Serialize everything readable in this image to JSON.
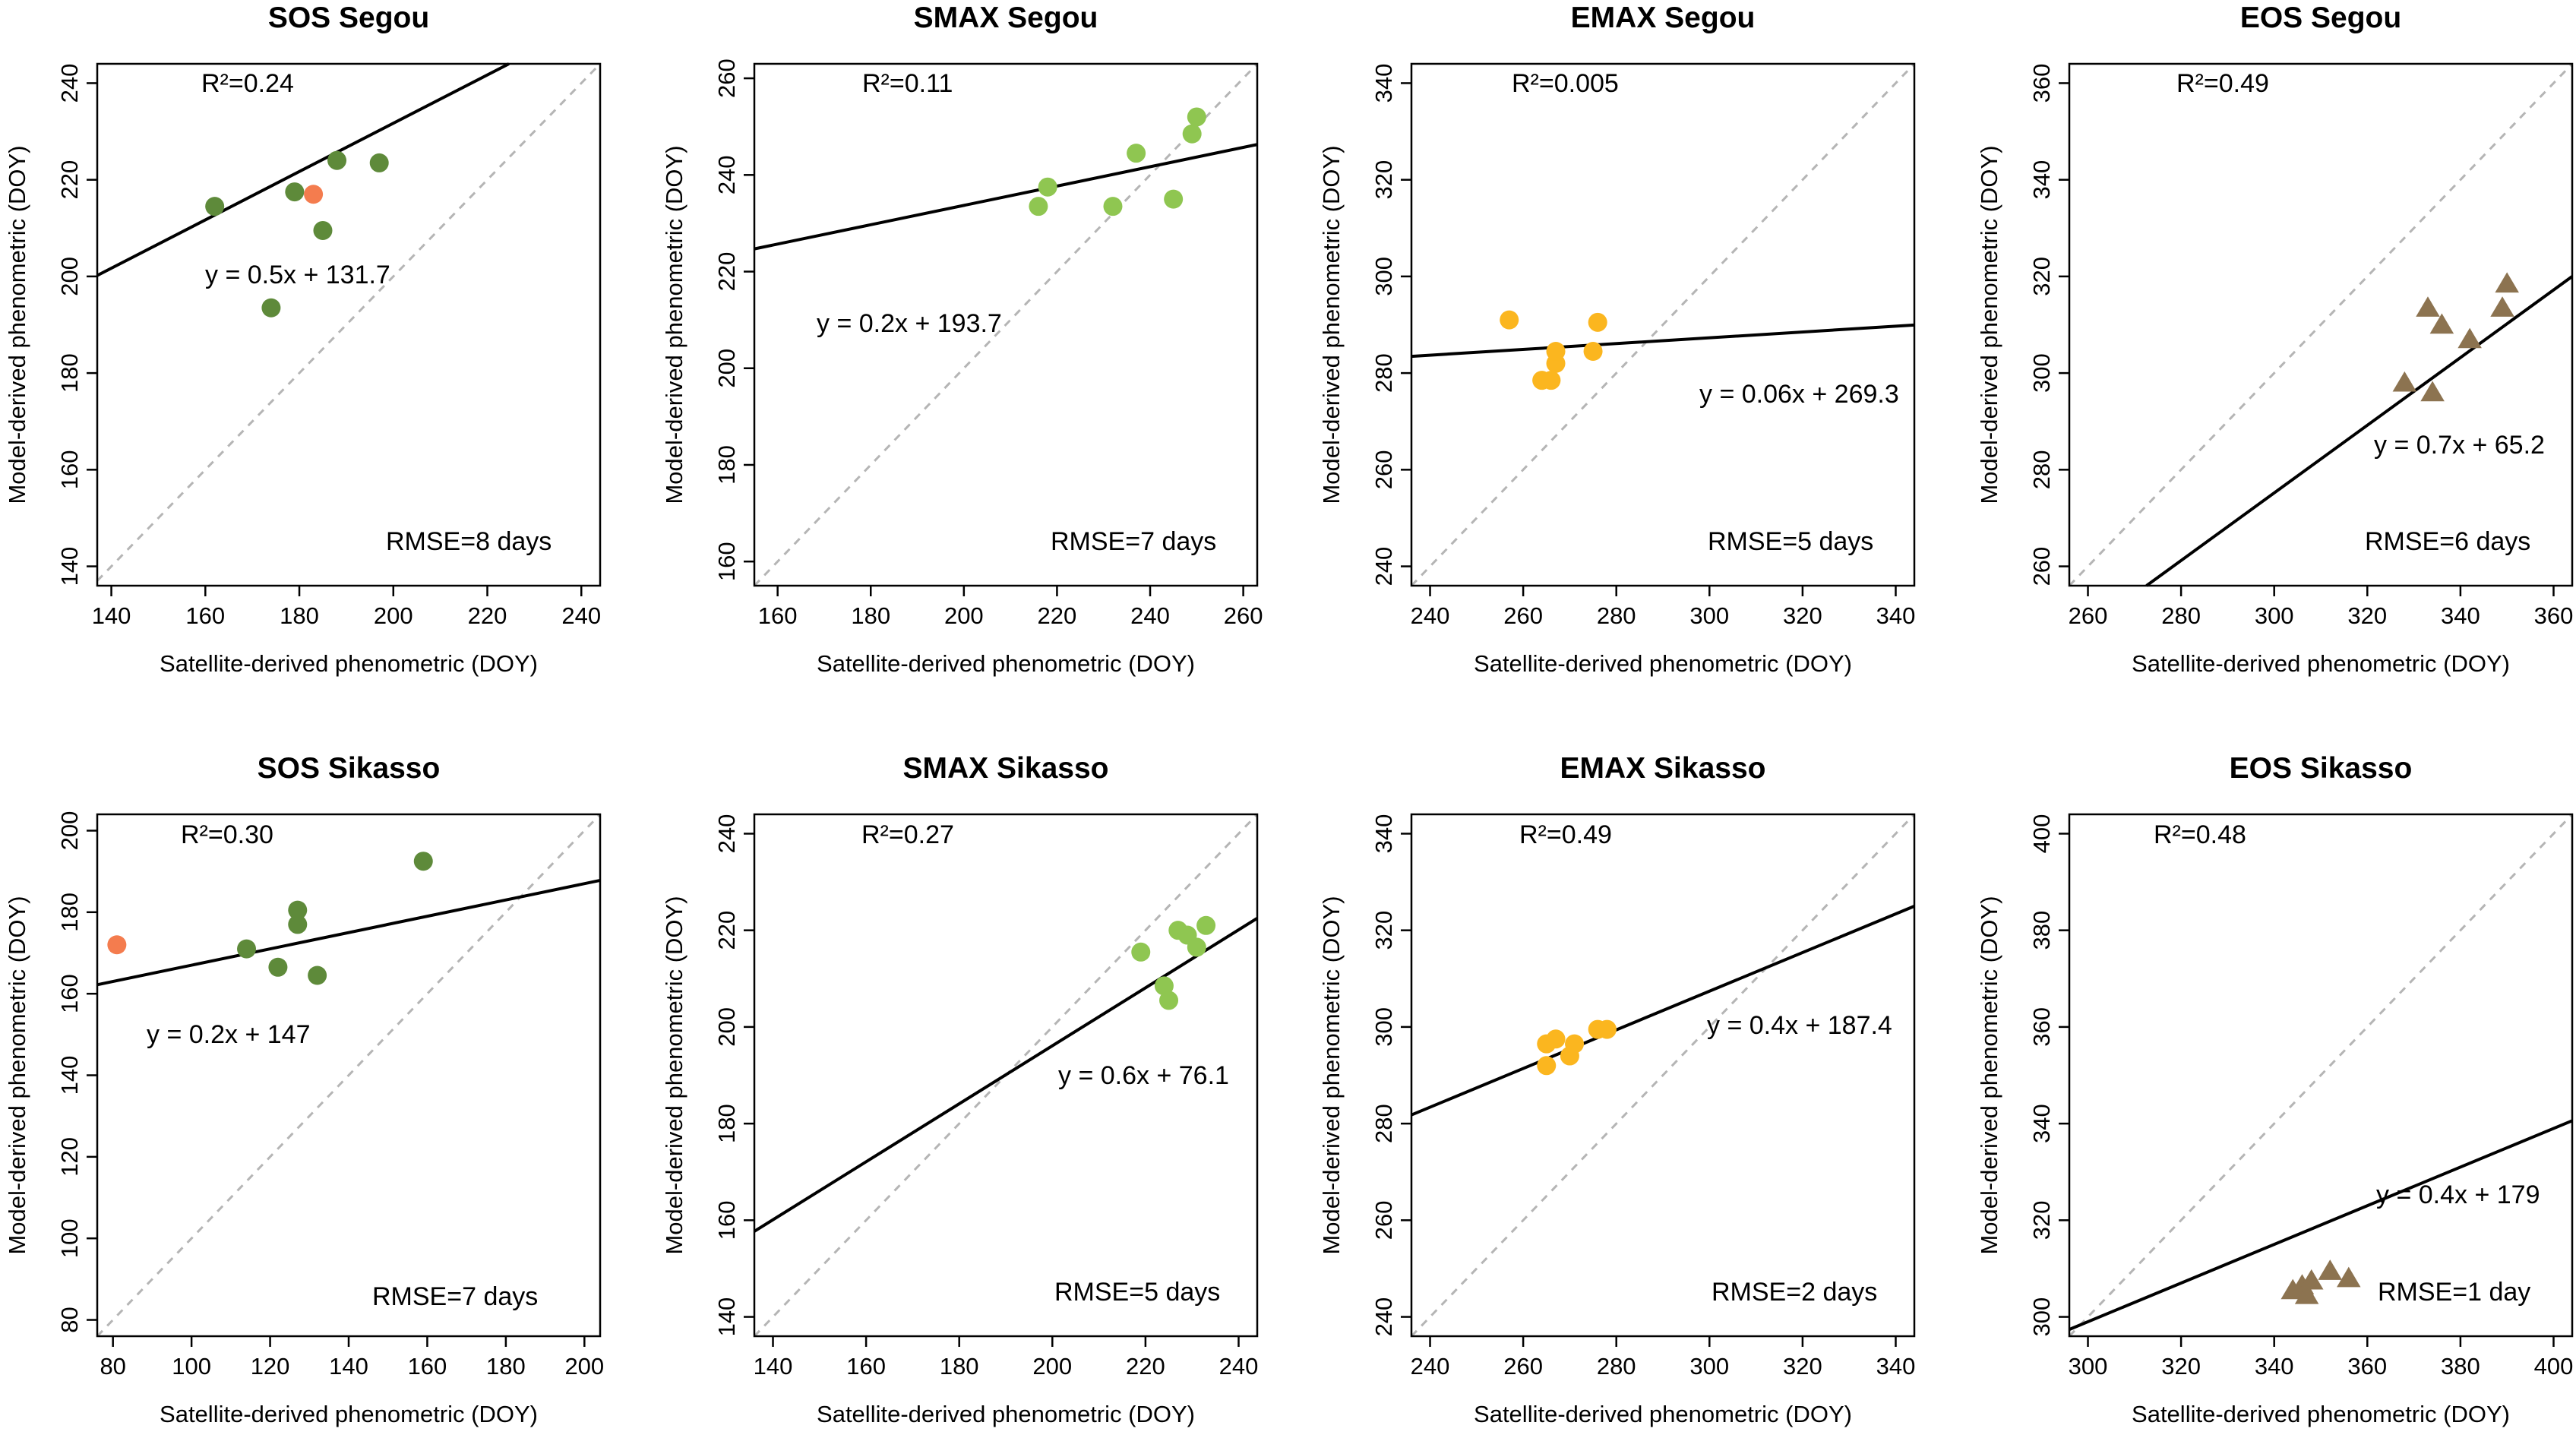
{
  "chart_data": [
    {
      "type": "scatter",
      "title": "SOS Segou",
      "xlabel": "Satellite-derived phenometric (DOY)",
      "ylabel": "Model-derived phenometric (DOY)",
      "xlim": [
        137,
        244
      ],
      "ylim": [
        136,
        244
      ],
      "xticks": [
        140,
        160,
        180,
        200,
        220,
        240
      ],
      "yticks": [
        140,
        160,
        180,
        200,
        220,
        240
      ],
      "marker": "circle",
      "color": "#5e8a3a",
      "points": [
        {
          "x": 162,
          "y": 214.5
        },
        {
          "x": 174,
          "y": 193.5
        },
        {
          "x": 179,
          "y": 217.5
        },
        {
          "x": 183,
          "y": 217,
          "color": "#f47c4e"
        },
        {
          "x": 185,
          "y": 209.5
        },
        {
          "x": 188,
          "y": 224
        },
        {
          "x": 197,
          "y": 223.5
        }
      ],
      "fit": {
        "slope": 0.5,
        "intercept": 131.7
      },
      "r2_label": "R²=0.24",
      "equation": "y = 0.5x + 131.7",
      "rmse_label": "RMSE=8 days"
    },
    {
      "type": "scatter",
      "title": "SMAX Segou",
      "xlabel": "Satellite-derived phenometric (DOY)",
      "ylabel": "Model-derived phenometric (DOY)",
      "xlim": [
        155,
        263
      ],
      "ylim": [
        155,
        263
      ],
      "xticks": [
        160,
        180,
        200,
        220,
        240,
        260
      ],
      "yticks": [
        160,
        180,
        200,
        220,
        240,
        260
      ],
      "marker": "circle",
      "color": "#8fc651",
      "points": [
        {
          "x": 216,
          "y": 233.5
        },
        {
          "x": 218,
          "y": 237.5
        },
        {
          "x": 232,
          "y": 233.5
        },
        {
          "x": 237,
          "y": 244.5
        },
        {
          "x": 245,
          "y": 235
        },
        {
          "x": 249,
          "y": 248.5
        },
        {
          "x": 250,
          "y": 252
        }
      ],
      "fit": {
        "slope": 0.2,
        "intercept": 193.7
      },
      "r2_label": "R²=0.11",
      "equation": "y = 0.2x + 193.7",
      "rmse_label": "RMSE=7 days"
    },
    {
      "type": "scatter",
      "title": "EMAX Segou",
      "xlabel": "Satellite-derived phenometric (DOY)",
      "ylabel": "Model-derived phenometric (DOY)",
      "xlim": [
        236,
        344
      ],
      "ylim": [
        236,
        344
      ],
      "xticks": [
        240,
        260,
        280,
        300,
        320,
        340
      ],
      "yticks": [
        240,
        260,
        280,
        300,
        320,
        340
      ],
      "marker": "circle",
      "color": "#fbb61f",
      "points": [
        {
          "x": 257,
          "y": 291
        },
        {
          "x": 264,
          "y": 278.5
        },
        {
          "x": 266,
          "y": 278.5
        },
        {
          "x": 267,
          "y": 282
        },
        {
          "x": 267,
          "y": 284.5
        },
        {
          "x": 275,
          "y": 284.5
        },
        {
          "x": 276,
          "y": 290.5
        }
      ],
      "fit": {
        "slope": 0.06,
        "intercept": 269.3
      },
      "r2_label": "R²=0.005",
      "equation": "y = 0.06x + 269.3",
      "rmse_label": "RMSE=5 days"
    },
    {
      "type": "scatter",
      "title": "EOS Segou",
      "xlabel": "Satellite-derived phenometric (DOY)",
      "ylabel": "Model-derived phenometric (DOY)",
      "xlim": [
        256,
        364
      ],
      "ylim": [
        256,
        364
      ],
      "xticks": [
        260,
        280,
        300,
        320,
        340,
        360
      ],
      "yticks": [
        260,
        280,
        300,
        320,
        340,
        360
      ],
      "marker": "triangle",
      "color": "#8c7350",
      "points": [
        {
          "x": 328,
          "y": 298
        },
        {
          "x": 333,
          "y": 313.5
        },
        {
          "x": 334,
          "y": 296
        },
        {
          "x": 336,
          "y": 310
        },
        {
          "x": 342,
          "y": 307
        },
        {
          "x": 349,
          "y": 313.5
        },
        {
          "x": 350,
          "y": 318.5
        }
      ],
      "fit": {
        "slope": 0.7,
        "intercept": 65.2
      },
      "r2_label": "R²=0.49",
      "equation": "y = 0.7x + 65.2",
      "rmse_label": "RMSE=6 days"
    },
    {
      "type": "scatter",
      "title": "SOS Sikasso",
      "xlabel": "Satellite-derived phenometric (DOY)",
      "ylabel": "Model-derived phenometric (DOY)",
      "xlim": [
        76,
        204
      ],
      "ylim": [
        76,
        204
      ],
      "xticks": [
        80,
        100,
        120,
        140,
        160,
        180,
        200
      ],
      "yticks": [
        80,
        100,
        120,
        140,
        160,
        180,
        200
      ],
      "marker": "circle",
      "color": "#5e8a3a",
      "points": [
        {
          "x": 81,
          "y": 172,
          "color": "#f47c4e"
        },
        {
          "x": 114,
          "y": 171
        },
        {
          "x": 122,
          "y": 166.5
        },
        {
          "x": 127,
          "y": 177
        },
        {
          "x": 127,
          "y": 180.5
        },
        {
          "x": 132,
          "y": 164.5
        },
        {
          "x": 159,
          "y": 192.5
        }
      ],
      "fit": {
        "slope": 0.2,
        "intercept": 147
      },
      "r2_label": "R²=0.30",
      "equation": "y = 0.2x + 147",
      "rmse_label": "RMSE=7 days"
    },
    {
      "type": "scatter",
      "title": "SMAX Sikasso",
      "xlabel": "Satellite-derived phenometric (DOY)",
      "ylabel": "Model-derived phenometric (DOY)",
      "xlim": [
        136,
        244
      ],
      "ylim": [
        136,
        244
      ],
      "xticks": [
        140,
        160,
        180,
        200,
        220,
        240
      ],
      "yticks": [
        140,
        160,
        180,
        200,
        220,
        240
      ],
      "marker": "circle",
      "color": "#8fc651",
      "points": [
        {
          "x": 219,
          "y": 215.5
        },
        {
          "x": 224,
          "y": 208.5
        },
        {
          "x": 225,
          "y": 205.5
        },
        {
          "x": 227,
          "y": 220
        },
        {
          "x": 229,
          "y": 219
        },
        {
          "x": 231,
          "y": 216.5
        },
        {
          "x": 233,
          "y": 221
        }
      ],
      "fit": {
        "slope": 0.6,
        "intercept": 76.1
      },
      "r2_label": "R²=0.27",
      "equation": "y = 0.6x + 76.1",
      "rmse_label": "RMSE=5 days"
    },
    {
      "type": "scatter",
      "title": "EMAX Sikasso",
      "xlabel": "Satellite-derived phenometric (DOY)",
      "ylabel": "Model-derived phenometric (DOY)",
      "xlim": [
        236,
        344
      ],
      "ylim": [
        236,
        344
      ],
      "xticks": [
        240,
        260,
        280,
        300,
        320,
        340
      ],
      "yticks": [
        240,
        260,
        280,
        300,
        320,
        340
      ],
      "marker": "circle",
      "color": "#fbb61f",
      "points": [
        {
          "x": 265,
          "y": 292
        },
        {
          "x": 265,
          "y": 296.5
        },
        {
          "x": 267,
          "y": 297.5
        },
        {
          "x": 270,
          "y": 294
        },
        {
          "x": 271,
          "y": 296.5
        },
        {
          "x": 276,
          "y": 299.5
        },
        {
          "x": 278,
          "y": 299.5
        }
      ],
      "fit": {
        "slope": 0.4,
        "intercept": 187.4
      },
      "r2_label": "R²=0.49",
      "equation": "y = 0.4x + 187.4",
      "rmse_label": "RMSE=2 days"
    },
    {
      "type": "scatter",
      "title": "EOS Sikasso",
      "xlabel": "Satellite-derived phenometric (DOY)",
      "ylabel": "Model-derived phenometric (DOY)",
      "xlim": [
        296,
        404
      ],
      "ylim": [
        296,
        404
      ],
      "xticks": [
        300,
        320,
        340,
        360,
        380,
        400
      ],
      "yticks": [
        300,
        320,
        340,
        360,
        380,
        400
      ],
      "marker": "triangle",
      "color": "#8c7350",
      "points": [
        {
          "x": 344,
          "y": 305.5
        },
        {
          "x": 346,
          "y": 306.5
        },
        {
          "x": 347,
          "y": 304.5
        },
        {
          "x": 348,
          "y": 307.5
        },
        {
          "x": 352,
          "y": 309.5
        },
        {
          "x": 356,
          "y": 308
        }
      ],
      "fit": {
        "slope": 0.4,
        "intercept": 179
      },
      "r2_label": "R²=0.48",
      "equation": "y = 0.4x + 179",
      "rmse_label": "RMSE=1 day"
    }
  ]
}
